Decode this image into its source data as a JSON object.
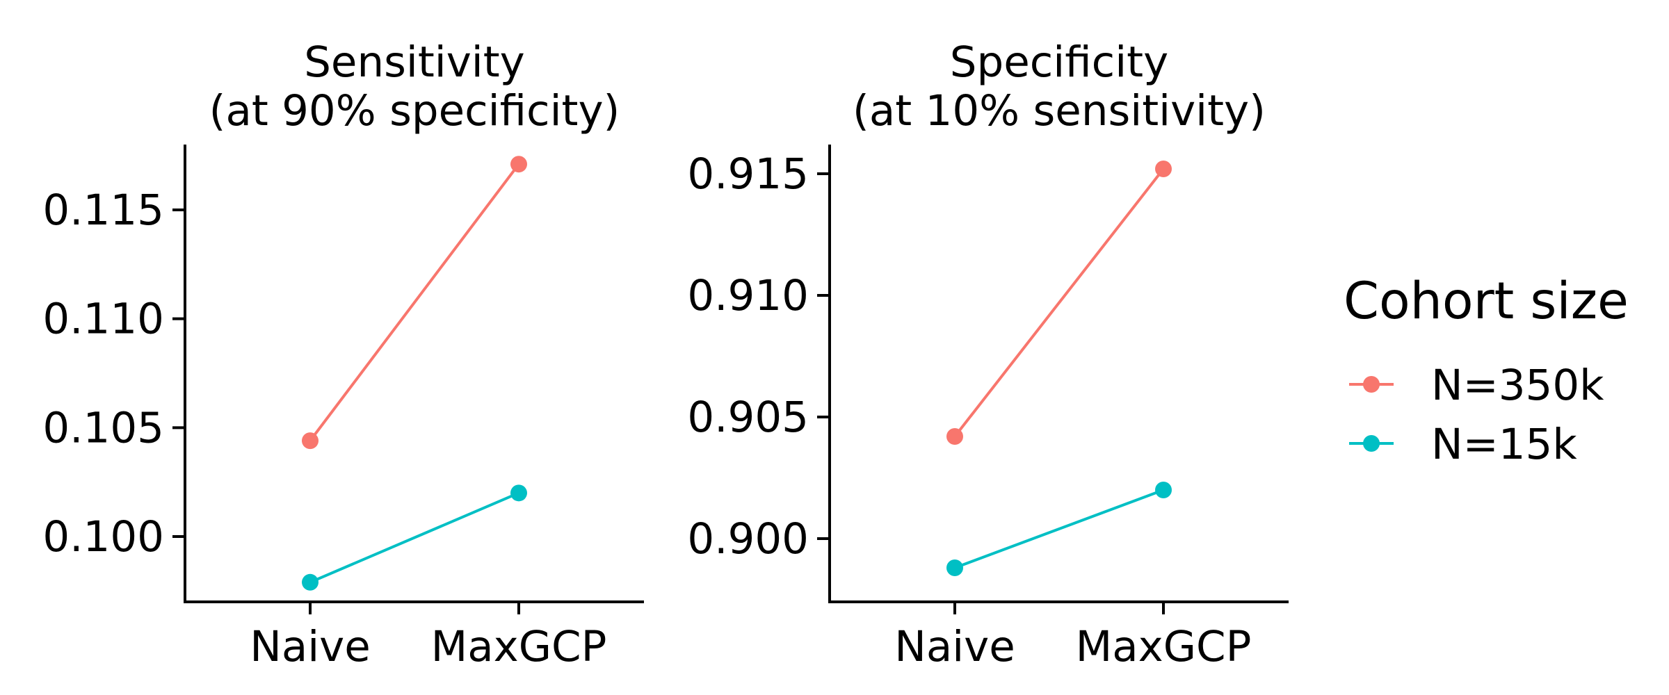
{
  "chart_data": [
    {
      "type": "line",
      "title": "Sensitivity",
      "subtitle": "(at 90% specificity)",
      "categories": [
        "Naive",
        "MaxGCP"
      ],
      "series": [
        {
          "name": "N=350k",
          "color": "#F8766D",
          "values": [
            0.1044,
            0.1171
          ]
        },
        {
          "name": "N=15k",
          "color": "#00BFC4",
          "values": [
            0.0979,
            0.102
          ]
        }
      ],
      "yticks": [
        "0.100",
        "0.105",
        "0.110",
        "0.115"
      ],
      "ylim": [
        0.097,
        0.118
      ]
    },
    {
      "type": "line",
      "title": "Specificity",
      "subtitle": "(at 10% sensitivity)",
      "categories": [
        "Naive",
        "MaxGCP"
      ],
      "series": [
        {
          "name": "N=350k",
          "color": "#F8766D",
          "values": [
            0.9042,
            0.9152
          ]
        },
        {
          "name": "N=15k",
          "color": "#00BFC4",
          "values": [
            0.8988,
            0.902
          ]
        }
      ],
      "yticks": [
        "0.900",
        "0.905",
        "0.910",
        "0.915"
      ],
      "ylim": [
        0.8974,
        0.9162
      ]
    }
  ],
  "legend": {
    "title": "Cohort size",
    "items": [
      {
        "label": "N=350k",
        "color": "#F8766D"
      },
      {
        "label": "N=15k",
        "color": "#00BFC4"
      }
    ]
  }
}
